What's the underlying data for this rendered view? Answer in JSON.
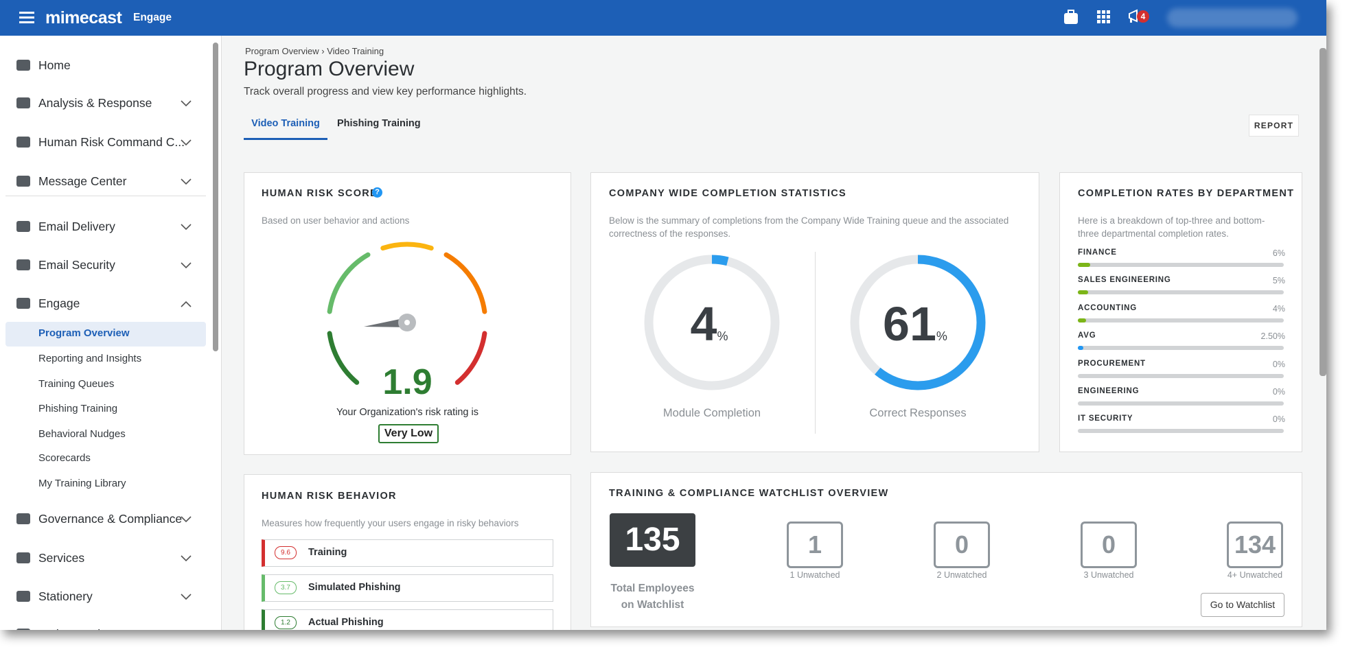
{
  "header": {
    "brand": "mimecast",
    "product": "Engage",
    "notification_count": "4"
  },
  "sidebar": {
    "items": [
      "Home",
      "Analysis & Response",
      "Human Risk Command C...",
      "Message Center",
      "Email Delivery",
      "Email Security",
      "Engage"
    ],
    "subitems": [
      "Program Overview",
      "Reporting and Insights",
      "Training Queues",
      "Phishing Training",
      "Behavioral Nudges",
      "Scorecards",
      "My Training Library"
    ],
    "more_items": [
      "Governance & Compliance",
      "Services",
      "Stationery",
      "Web Security"
    ]
  },
  "breadcrumb": [
    "Program Overview",
    "Video Training"
  ],
  "page": {
    "title": "Program Overview",
    "subtitle": "Track overall progress and view key performance highlights."
  },
  "tabs": [
    "Video Training",
    "Phishing Training"
  ],
  "report_button": "REPORT",
  "human_risk_score": {
    "title": "HUMAN RISK SCORE",
    "subtitle": "Based on user behavior and actions",
    "score": 1.9,
    "caption": "Your Organization's risk rating is",
    "rating": "Very Low"
  },
  "completion_statistics": {
    "title": "COMPANY WIDE COMPLETION STATISTICS",
    "description": "Below is the summary of completions from the Company Wide Training queue and the associated correctness of the responses.",
    "module_completion": {
      "value": 4,
      "unit": "%",
      "label": "Module Completion"
    },
    "correct_responses": {
      "value": 61,
      "unit": "%",
      "label": "Correct Responses"
    }
  },
  "department_rates": {
    "title": "COMPLETION RATES BY DEPARTMENT",
    "description": "Here is a breakdown of top-three and bottom-three departmental completion rates.",
    "departments": [
      {
        "name": "FINANCE",
        "value": 6,
        "label": "6%"
      },
      {
        "name": "SALES ENGINEERING",
        "value": 5,
        "label": "5%"
      },
      {
        "name": "ACCOUNTING",
        "value": 4,
        "label": "4%"
      },
      {
        "name": "AVG",
        "value": 2.5,
        "label": "2.50%"
      },
      {
        "name": "PROCUREMENT",
        "value": 0,
        "label": "0%"
      },
      {
        "name": "ENGINEERING",
        "value": 0,
        "label": "0%"
      },
      {
        "name": "IT SECURITY",
        "value": 0,
        "label": "0%"
      }
    ]
  },
  "human_risk_behavior": {
    "title": "HUMAN RISK BEHAVIOR",
    "subtitle": "Measures how frequently your users engage in risky behaviors",
    "rows": [
      {
        "score": 9.6,
        "label": "Training"
      },
      {
        "score": 3.7,
        "label": "Simulated Phishing"
      },
      {
        "score": 1.2,
        "label": "Actual Phishing"
      }
    ]
  },
  "watchlist": {
    "title": "TRAINING & COMPLIANCE WATCHLIST OVERVIEW",
    "total": 135,
    "total_label": "Total Employees on Watchlist",
    "buckets": [
      {
        "count": 1,
        "label": "1 Unwatched"
      },
      {
        "count": 0,
        "label": "2 Unwatched"
      },
      {
        "count": 0,
        "label": "3 Unwatched"
      },
      {
        "count": 134,
        "label": "4+ Unwatched"
      }
    ],
    "button": "Go to Watchlist"
  }
}
